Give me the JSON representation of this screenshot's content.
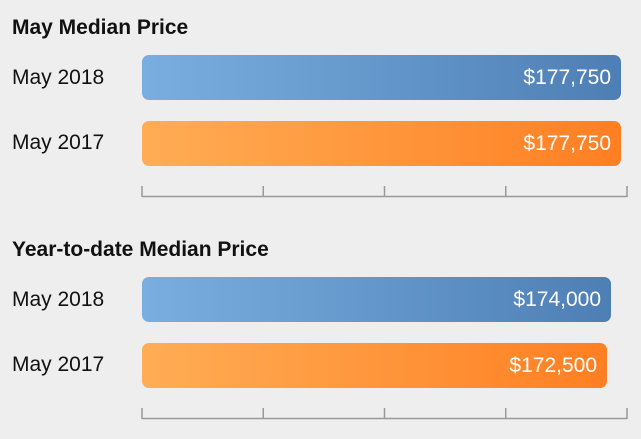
{
  "chart_data": [
    {
      "type": "bar",
      "orientation": "horizontal",
      "title": "May Median Price",
      "categories": [
        "May 2018",
        "May 2017"
      ],
      "values": [
        177750,
        177750
      ],
      "value_labels": [
        "$177,750",
        "$177,750"
      ],
      "colors": [
        "#5b8fc8",
        "#ff8c33"
      ],
      "xlim": [
        0,
        180000
      ],
      "axis_ticks": 5,
      "grid": false
    },
    {
      "type": "bar",
      "orientation": "horizontal",
      "title": "Year-to-date Median Price",
      "categories": [
        "May 2018",
        "May 2017"
      ],
      "values": [
        174000,
        172500
      ],
      "value_labels": [
        "$174,000",
        "$172,500"
      ],
      "colors": [
        "#5b8fc8",
        "#ff8c33"
      ],
      "xlim": [
        0,
        180000
      ],
      "axis_ticks": 5,
      "grid": false
    }
  ]
}
